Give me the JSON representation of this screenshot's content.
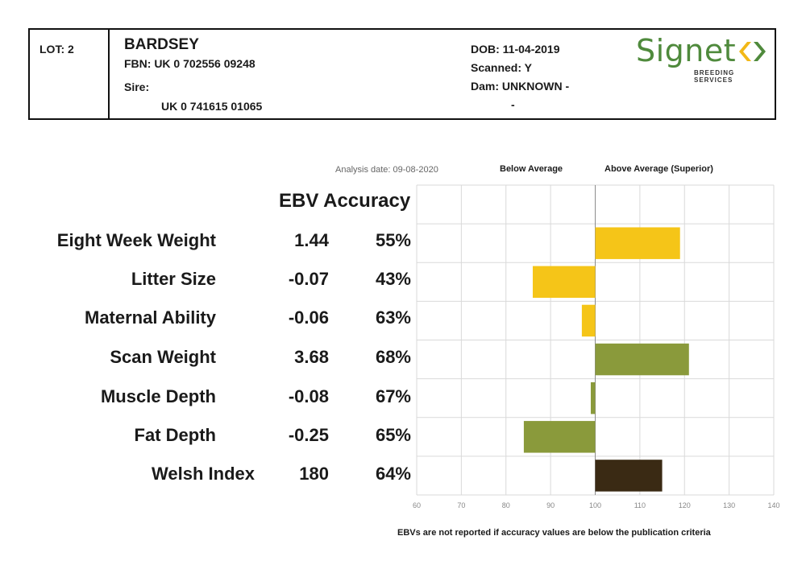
{
  "header": {
    "lot": "LOT: 2",
    "name": "BARDSEY",
    "fbn": "FBN: UK 0 702556 09248",
    "sire_label": "Sire:",
    "sire_value": "UK 0 741615 01065",
    "dob": "DOB: 11-04-2019",
    "scanned": "Scanned: Y",
    "dam": "Dam: UNKNOWN -",
    "dam_cont": "-",
    "logo_word": "Signet",
    "logo_sub": "BREEDING SERVICES"
  },
  "labels": {
    "analysis_date": "Analysis date: 09-08-2020",
    "below_average": "Below Average",
    "above_average": "Above Average (Superior)",
    "ebv_accuracy": "EBV Accuracy",
    "footnote": "EBVs are not reported if accuracy values are below the publication criteria"
  },
  "colors": {
    "yellow": "#f5c518",
    "green": "#8a9a3b",
    "dark": "#3a2a14",
    "grid": "#d9d9d9",
    "baseline": "#8c8c8c",
    "logo_green": "#4f8a3c",
    "logo_yellow": "#f2b817"
  },
  "rows": [
    {
      "label": "Eight Week Weight",
      "ebv": "1.44",
      "accuracy": "55%"
    },
    {
      "label": "Litter Size",
      "ebv": "-0.07",
      "accuracy": "43%"
    },
    {
      "label": "Maternal Ability",
      "ebv": "-0.06",
      "accuracy": "63%"
    },
    {
      "label": "Scan Weight",
      "ebv": "3.68",
      "accuracy": "68%"
    },
    {
      "label": "Muscle Depth",
      "ebv": "-0.08",
      "accuracy": "67%"
    },
    {
      "label": "Fat Depth",
      "ebv": "-0.25",
      "accuracy": "65%"
    },
    {
      "label": "Welsh Index",
      "ebv": "180",
      "accuracy": "64%"
    }
  ],
  "chart_data": {
    "type": "bar",
    "orientation": "horizontal",
    "categories": [
      "Eight Week Weight",
      "Litter Size",
      "Maternal Ability",
      "Scan Weight",
      "Muscle Depth",
      "Fat Depth",
      "Welsh Index"
    ],
    "values": [
      119,
      86,
      97,
      121,
      99,
      84,
      115
    ],
    "baseline": 100,
    "bar_colors": [
      "yellow",
      "yellow",
      "yellow",
      "green",
      "green",
      "green",
      "dark"
    ],
    "xlim": [
      60,
      140
    ],
    "xticks": [
      60,
      70,
      80,
      90,
      100,
      110,
      120,
      130,
      140
    ],
    "grid": true
  }
}
